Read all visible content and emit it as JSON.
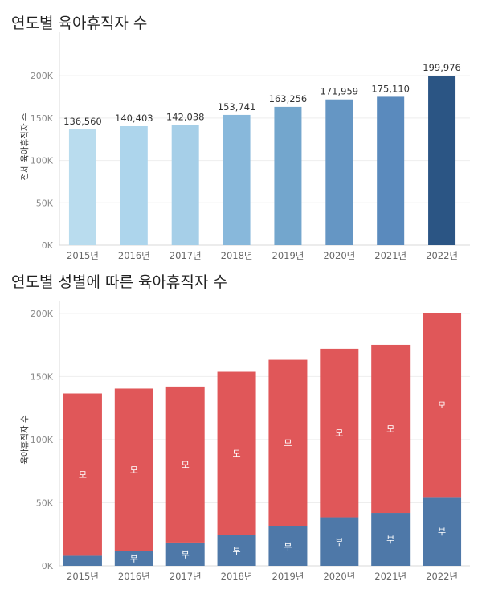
{
  "chart_data": [
    {
      "type": "bar",
      "title": "연도별 육아휴직자 수",
      "ylabel": "전체 육아휴직자 수",
      "xlabel": "",
      "categories": [
        "2015년",
        "2016년",
        "2017년",
        "2018년",
        "2019년",
        "2020년",
        "2021년",
        "2022년"
      ],
      "values": [
        136560,
        140403,
        142038,
        153741,
        163256,
        171959,
        175110,
        199976
      ],
      "value_labels": [
        "136,560",
        "140,403",
        "142,038",
        "153,741",
        "163,256",
        "171,959",
        "175,110",
        "199,976"
      ],
      "yticks": [
        "0K",
        "50K",
        "100K",
        "150K",
        "200K"
      ],
      "ylim": [
        0,
        240000
      ],
      "colors": [
        "#b9dcee",
        "#add5ec",
        "#a6cfe8",
        "#88b8db",
        "#73a6cd",
        "#6596c4",
        "#5a8abd",
        "#2b5584"
      ],
      "grid": true
    },
    {
      "type": "stacked_bar",
      "title": "연도별 성별에 따른 육아휴직자 수",
      "ylabel": "육아휴직자 수",
      "xlabel": "",
      "categories": [
        "2015년",
        "2016년",
        "2017년",
        "2018년",
        "2019년",
        "2020년",
        "2021년",
        "2022년"
      ],
      "series": [
        {
          "name": "부",
          "values": [
            8000,
            12000,
            18500,
            24500,
            31500,
            38500,
            42000,
            54500
          ],
          "color": "#4e78a8"
        },
        {
          "name": "모",
          "values": [
            128560,
            128403,
            123538,
            129241,
            131756,
            133459,
            133110,
            145476
          ],
          "color": "#e05759"
        }
      ],
      "yticks": [
        "0K",
        "50K",
        "100K",
        "150K",
        "200K"
      ],
      "ylim": [
        0,
        205000
      ],
      "grid": true
    }
  ]
}
